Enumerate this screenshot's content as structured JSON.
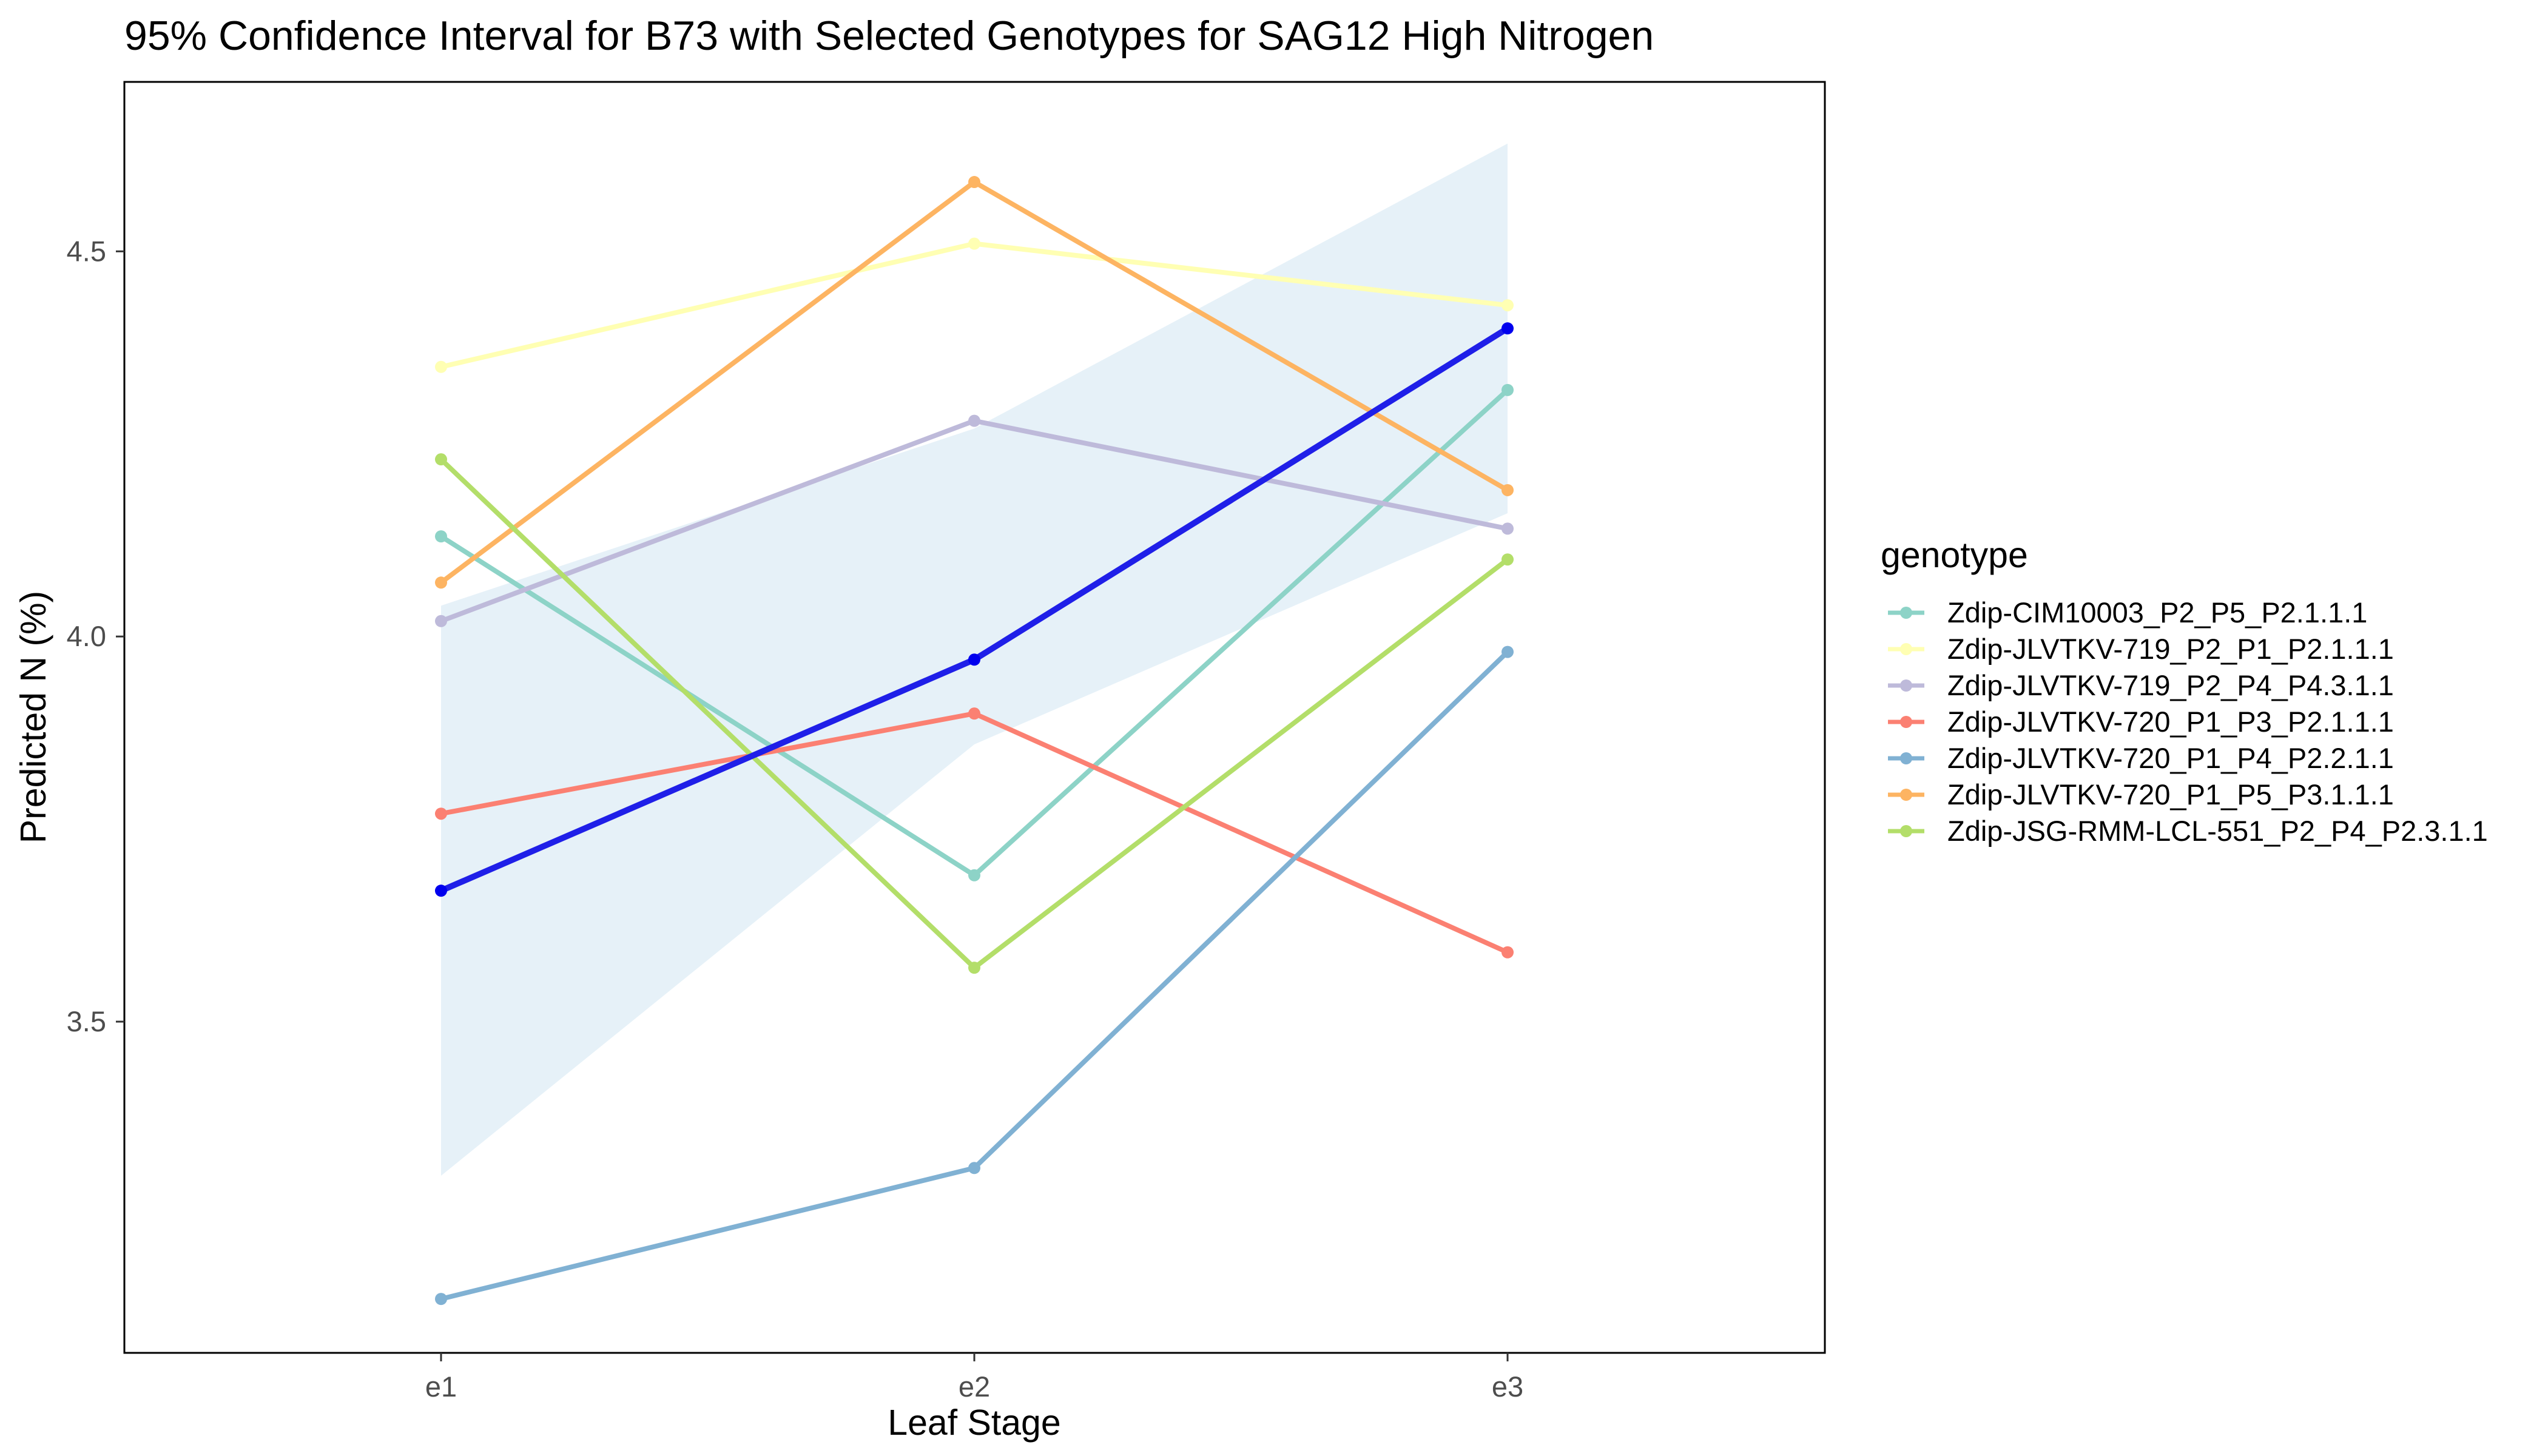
{
  "chart_data": {
    "type": "line",
    "title": "95% Confidence Interval for B73 with Selected Genotypes for SAG12 High Nitrogen",
    "xlabel": "Leaf Stage",
    "ylabel": "Predicted N (%)",
    "categories": [
      "e1",
      "e2",
      "e3"
    ],
    "ylim": [
      3.07,
      4.72
    ],
    "yticks": [
      "3.5",
      "4.0",
      "4.5"
    ],
    "ytick_values": [
      3.5,
      4.0,
      4.5
    ],
    "grid": false,
    "legend": {
      "title": "genotype",
      "placement": "right"
    },
    "confidence_band": {
      "color": "#e6f1f8",
      "lower": [
        3.3,
        3.86,
        4.16
      ],
      "upper": [
        4.04,
        4.27,
        4.64
      ]
    },
    "reference_series": {
      "color": "#1f1fe8",
      "point_color": "#0000ee",
      "values": [
        3.67,
        3.97,
        4.4
      ]
    },
    "series": [
      {
        "name": "Zdip-CIM10003_P2_P5_P2.1.1.1",
        "color": "#8dd3c7",
        "values": [
          4.13,
          3.69,
          4.32
        ]
      },
      {
        "name": "Zdip-JLVTKV-719_P2_P1_P2.1.1.1",
        "color": "#ffffb3",
        "values": [
          4.35,
          4.51,
          4.43
        ]
      },
      {
        "name": "Zdip-JLVTKV-719_P2_P4_P4.3.1.1",
        "color": "#bebada",
        "values": [
          4.02,
          4.28,
          4.14
        ]
      },
      {
        "name": "Zdip-JLVTKV-720_P1_P3_P2.1.1.1",
        "color": "#fb8072",
        "values": [
          3.77,
          3.9,
          3.59
        ]
      },
      {
        "name": "Zdip-JLVTKV-720_P1_P4_P2.2.1.1",
        "color": "#80b1d3",
        "values": [
          3.14,
          3.31,
          3.98
        ]
      },
      {
        "name": "Zdip-JLVTKV-720_P1_P5_P3.1.1.1",
        "color": "#fdb462",
        "values": [
          4.07,
          4.59,
          4.19
        ]
      },
      {
        "name": "Zdip-JSG-RMM-LCL-551_P2_P4_P2.3.1.1",
        "color": "#b3de69",
        "values": [
          4.23,
          3.57,
          4.1
        ]
      }
    ]
  }
}
